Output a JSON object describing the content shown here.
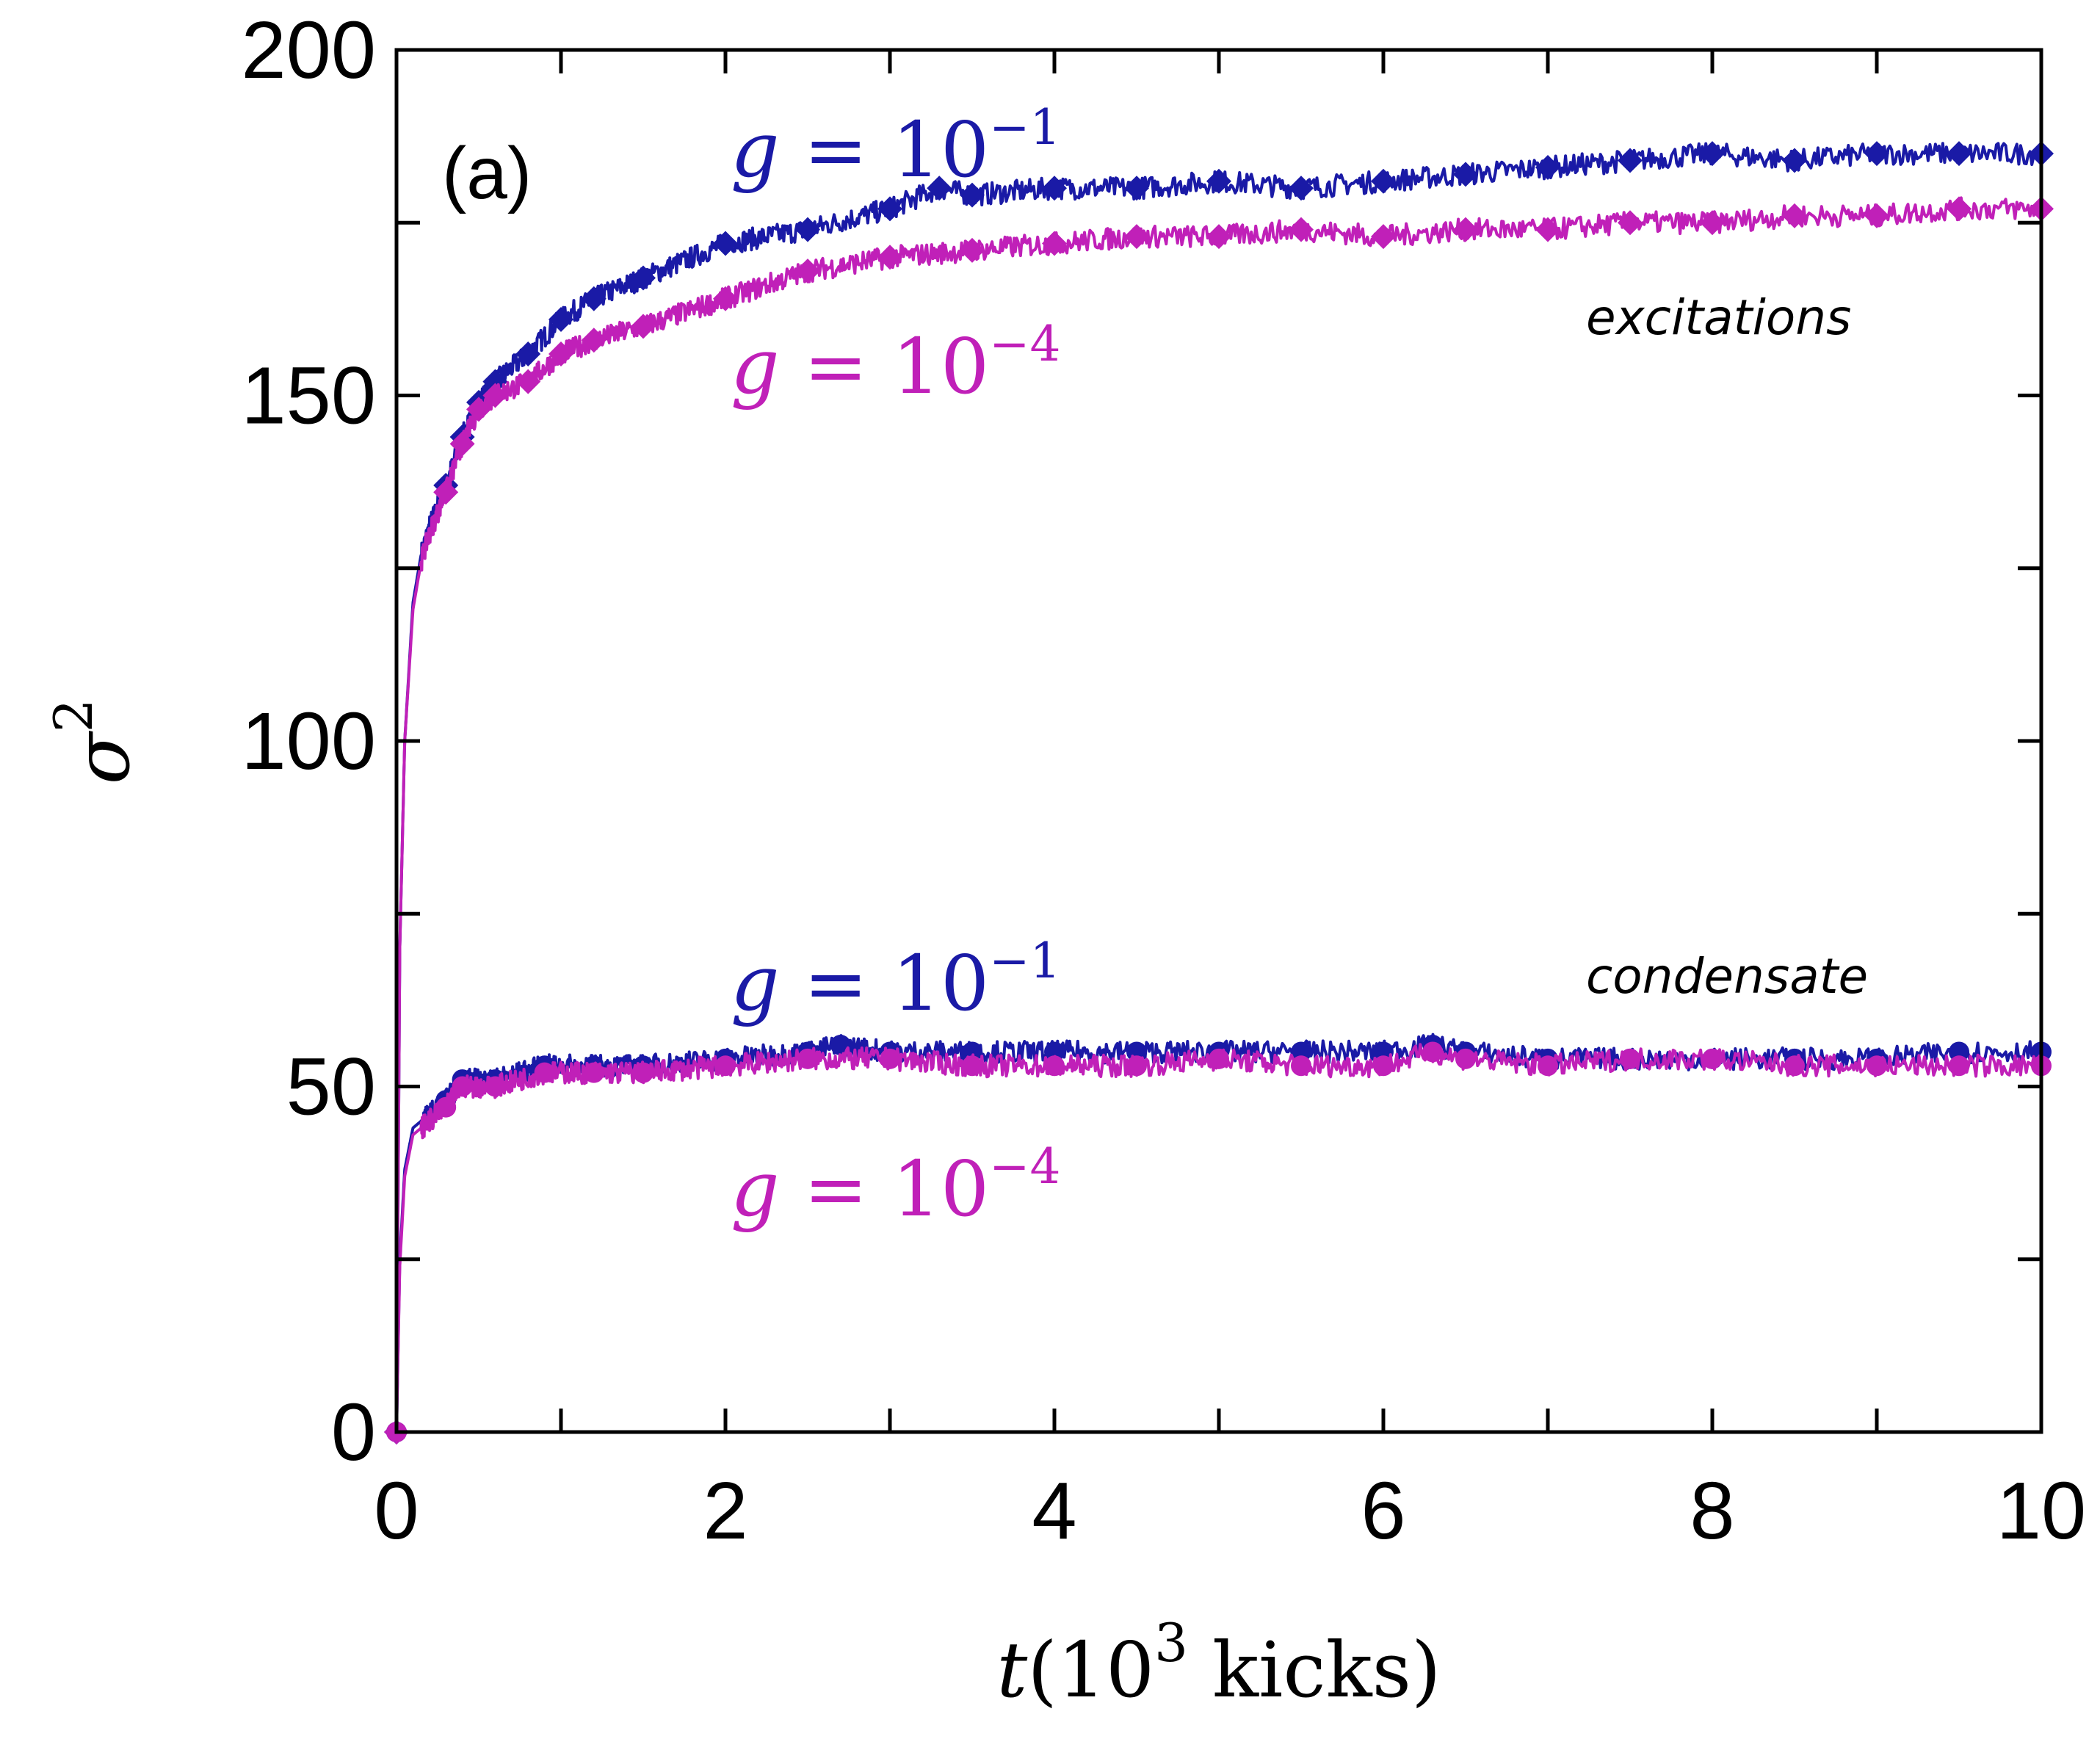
{
  "chart_data": {
    "type": "line",
    "panel_label": "(a)",
    "xlabel": {
      "var": "t",
      "open": "(10",
      "exp": "3",
      "rest": " kicks)"
    },
    "ylabel": {
      "base": "σ",
      "exp": "2"
    },
    "xlim": [
      0,
      10
    ],
    "ylim": [
      0,
      200
    ],
    "x_ticks": [
      0,
      2,
      4,
      6,
      8,
      10
    ],
    "y_ticks": [
      0,
      50,
      100,
      150,
      200
    ],
    "x_tick_labels": [
      "0",
      "2",
      "4",
      "6",
      "8",
      "10"
    ],
    "y_tick_labels": [
      "0",
      "50",
      "100",
      "150",
      "200"
    ],
    "annotations": {
      "excitations": "excitations",
      "condensate": "condensate"
    },
    "curve_labels": [
      {
        "g": "g",
        "eq": " = 10",
        "exp": "−1",
        "color": "#1a1aa6"
      },
      {
        "g": "g",
        "eq": " = 10",
        "exp": "−4",
        "color": "#c020b8"
      },
      {
        "g": "g",
        "eq": " = 10",
        "exp": "−1",
        "color": "#1a1aa6"
      },
      {
        "g": "g",
        "eq": " = 10",
        "exp": "−4",
        "color": "#c020b8"
      }
    ],
    "series": [
      {
        "name": "excitations g=10^-1",
        "color": "#1a1aa6",
        "marker": "diamond",
        "x": [
          0,
          0.02,
          0.05,
          0.1,
          0.15,
          0.2,
          0.3,
          0.4,
          0.5,
          0.6,
          0.8,
          1.0,
          1.2,
          1.5,
          2.0,
          2.5,
          3.0,
          3.3,
          3.5,
          4.0,
          4.5,
          5.0,
          5.5,
          6.0,
          6.5,
          7.0,
          7.5,
          8.0,
          8.5,
          9.0,
          9.5,
          10.0
        ],
        "y": [
          0,
          70,
          100,
          120,
          127,
          131,
          137,
          144,
          149,
          152,
          156,
          161,
          164,
          167,
          172,
          174,
          177,
          180,
          179,
          180,
          180,
          181,
          180,
          181,
          182,
          183,
          184,
          185,
          184,
          185,
          185,
          185
        ]
      },
      {
        "name": "excitations g=10^-4",
        "color": "#c020b8",
        "marker": "diamond",
        "x": [
          0,
          0.02,
          0.05,
          0.1,
          0.15,
          0.2,
          0.3,
          0.4,
          0.5,
          0.6,
          0.8,
          1.0,
          1.2,
          1.5,
          2.0,
          2.5,
          3.0,
          3.5,
          4.0,
          4.5,
          5.0,
          5.5,
          6.0,
          6.5,
          7.0,
          7.5,
          8.0,
          8.5,
          9.0,
          9.5,
          10.0
        ],
        "y": [
          0,
          70,
          100,
          119,
          126,
          130,
          136,
          143,
          148,
          150,
          152,
          156,
          158,
          160,
          164,
          168,
          170,
          171,
          172,
          173,
          173,
          174,
          173,
          174,
          174,
          175,
          175,
          176,
          176,
          177,
          177
        ]
      },
      {
        "name": "condensate g=10^-1",
        "color": "#1a1aa6",
        "marker": "circle",
        "x": [
          0,
          0.02,
          0.05,
          0.1,
          0.2,
          0.3,
          0.4,
          0.6,
          0.9,
          1.2,
          1.5,
          2.0,
          2.5,
          2.7,
          3.0,
          3.5,
          4.0,
          4.5,
          5.0,
          5.5,
          6.0,
          6.3,
          6.5,
          7.0,
          7.5,
          8.0,
          8.5,
          9.0,
          9.5,
          10.0
        ],
        "y": [
          0,
          25,
          38,
          44,
          46,
          48,
          51,
          51,
          53,
          53,
          53,
          54,
          55,
          56,
          55,
          55,
          55,
          55,
          55,
          55,
          55,
          56,
          55,
          54,
          54,
          54,
          54,
          54,
          55,
          55
        ]
      },
      {
        "name": "condensate g=10^-4",
        "color": "#c020b8",
        "marker": "circle",
        "x": [
          0,
          0.02,
          0.05,
          0.1,
          0.2,
          0.3,
          0.4,
          0.6,
          0.9,
          1.2,
          1.5,
          2.0,
          2.5,
          3.0,
          3.5,
          4.0,
          4.5,
          5.0,
          5.5,
          6.0,
          6.3,
          6.5,
          7.0,
          7.5,
          8.0,
          8.5,
          9.0,
          9.5,
          10.0
        ],
        "y": [
          0,
          24,
          37,
          43,
          45,
          47,
          50,
          50,
          52,
          52,
          52,
          53,
          54,
          54,
          53,
          53,
          53,
          54,
          53,
          53,
          55,
          54,
          53,
          54,
          54,
          53,
          53,
          53,
          53
        ]
      }
    ]
  }
}
